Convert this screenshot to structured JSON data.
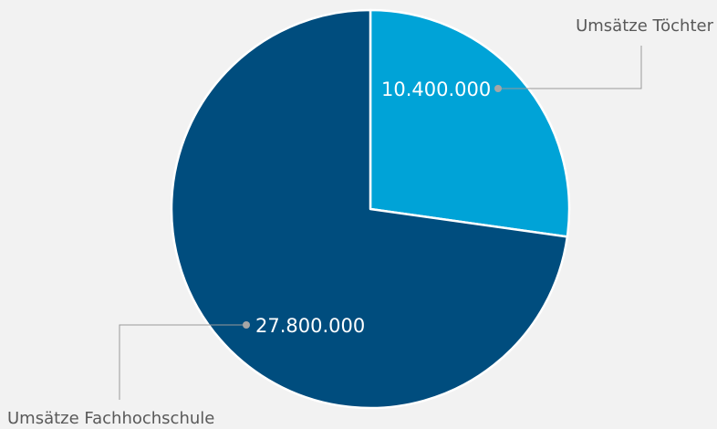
{
  "chart_data": {
    "type": "pie",
    "categories": [
      "Umsätze Töchter",
      "Umsätze Fachhochschule"
    ],
    "values": [
      10400000,
      27800000
    ],
    "value_labels": [
      "10.400.000",
      "27.800.000"
    ],
    "colors": [
      "#00a3d7",
      "#004d7e"
    ],
    "start_angle_deg": 0,
    "direction": "clockwise",
    "legend": "none",
    "label_style": "callout"
  }
}
